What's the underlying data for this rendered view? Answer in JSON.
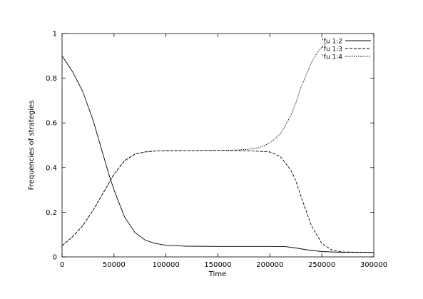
{
  "chart_data": {
    "type": "line",
    "title": "",
    "xlabel": "Time",
    "ylabel": "Frequencies of strategies",
    "xlim": [
      0,
      300000
    ],
    "ylim": [
      0,
      1
    ],
    "xticks": [
      0,
      50000,
      100000,
      150000,
      200000,
      250000,
      300000
    ],
    "xtick_labels": [
      "0",
      "50000",
      "100000",
      "150000",
      "200000",
      "250000",
      "300000"
    ],
    "yticks": [
      0,
      0.2,
      0.4,
      0.6,
      0.8,
      1
    ],
    "ytick_labels": [
      "0",
      "0.2",
      "0.4",
      "0.6",
      "0.8",
      "1"
    ],
    "grid": false,
    "legend": "top-right",
    "series": [
      {
        "name": "'fu 1:2",
        "dash": "solid",
        "x": [
          0,
          10000,
          20000,
          30000,
          40000,
          45000,
          50000,
          60000,
          70000,
          80000,
          90000,
          100000,
          120000,
          150000,
          180000,
          200000,
          215000,
          225000,
          235000,
          250000,
          270000,
          300000
        ],
        "y": [
          0.9,
          0.83,
          0.74,
          0.61,
          0.45,
          0.37,
          0.3,
          0.18,
          0.11,
          0.075,
          0.06,
          0.052,
          0.048,
          0.047,
          0.047,
          0.047,
          0.046,
          0.04,
          0.032,
          0.024,
          0.02,
          0.02
        ]
      },
      {
        "name": "'fu 1:3",
        "dash": "dashed",
        "x": [
          0,
          10000,
          20000,
          30000,
          40000,
          45000,
          50000,
          60000,
          70000,
          80000,
          90000,
          100000,
          120000,
          150000,
          180000,
          200000,
          210000,
          220000,
          225000,
          230000,
          240000,
          250000,
          260000,
          270000,
          300000
        ],
        "y": [
          0.05,
          0.09,
          0.14,
          0.21,
          0.29,
          0.33,
          0.37,
          0.43,
          0.46,
          0.47,
          0.474,
          0.475,
          0.476,
          0.477,
          0.475,
          0.47,
          0.45,
          0.39,
          0.34,
          0.27,
          0.14,
          0.06,
          0.03,
          0.022,
          0.02
        ]
      },
      {
        "name": "'fu 1:4",
        "dash": "dotted",
        "x": [
          0,
          10000,
          20000,
          30000,
          40000,
          45000,
          50000,
          60000,
          70000,
          80000,
          90000,
          100000,
          120000,
          150000,
          170000,
          180000,
          190000,
          200000,
          210000,
          220000,
          225000,
          230000,
          240000,
          245000,
          250000,
          255000
        ],
        "y": [
          0.05,
          0.09,
          0.14,
          0.21,
          0.29,
          0.33,
          0.37,
          0.43,
          0.46,
          0.47,
          0.474,
          0.475,
          0.476,
          0.477,
          0.479,
          0.482,
          0.49,
          0.51,
          0.55,
          0.63,
          0.69,
          0.76,
          0.87,
          0.91,
          0.94,
          0.96
        ]
      }
    ]
  }
}
